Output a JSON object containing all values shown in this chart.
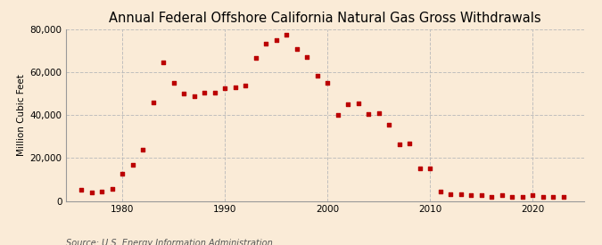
{
  "title": "Annual Federal Offshore California Natural Gas Gross Withdrawals",
  "ylabel": "Million Cubic Feet",
  "source": "Source: U.S. Energy Information Administration",
  "background_color": "#faebd7",
  "plot_background_color": "#faebd7",
  "marker_color": "#bb0000",
  "grid_color": "#bbbbbb",
  "years": [
    1976,
    1977,
    1978,
    1979,
    1980,
    1981,
    1982,
    1983,
    1984,
    1985,
    1986,
    1987,
    1988,
    1989,
    1990,
    1991,
    1992,
    1993,
    1994,
    1995,
    1996,
    1997,
    1998,
    1999,
    2000,
    2001,
    2002,
    2003,
    2004,
    2005,
    2006,
    2007,
    2008,
    2009,
    2010,
    2011,
    2012,
    2013,
    2014,
    2015,
    2016,
    2017,
    2018,
    2019,
    2020,
    2021,
    2022,
    2023
  ],
  "values": [
    5000,
    4000,
    4200,
    5500,
    12500,
    17000,
    24000,
    46000,
    64500,
    55000,
    50000,
    49000,
    50500,
    50500,
    52500,
    53000,
    54000,
    66500,
    73500,
    75000,
    77500,
    71000,
    67000,
    58500,
    55000,
    40000,
    45000,
    45500,
    40500,
    41000,
    35500,
    26500,
    27000,
    15000,
    15000,
    4500,
    3000,
    3000,
    2500,
    2500,
    2000,
    2500,
    2000,
    2000,
    2500,
    2000,
    2000,
    2000
  ],
  "ylim": [
    0,
    80000
  ],
  "xlim": [
    1974.5,
    2025
  ],
  "yticks": [
    0,
    20000,
    40000,
    60000,
    80000
  ],
  "xticks": [
    1980,
    1990,
    2000,
    2010,
    2020
  ],
  "title_fontsize": 10.5,
  "label_fontsize": 7.5,
  "tick_fontsize": 7.5,
  "source_fontsize": 7
}
